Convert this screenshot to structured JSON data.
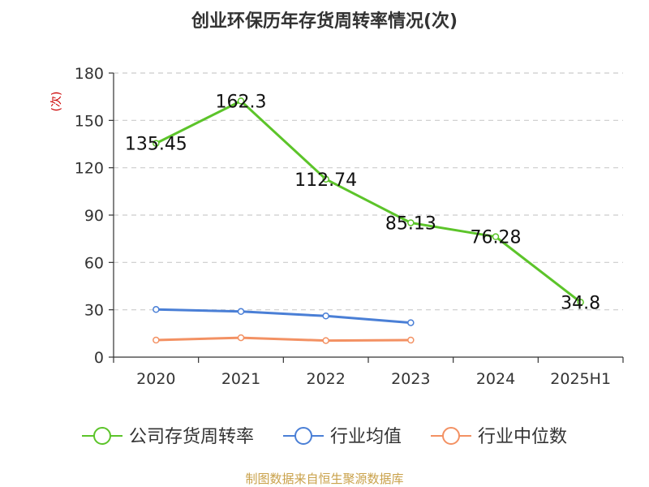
{
  "chart_data": {
    "type": "line",
    "title": "创业环保历年存货周转率情况(次)",
    "ylabel": "(次)",
    "categories": [
      "2020",
      "2021",
      "2022",
      "2023",
      "2024",
      "2025H1"
    ],
    "ylim": [
      0,
      180
    ],
    "yticks": [
      0,
      30,
      60,
      90,
      120,
      150,
      180
    ],
    "grid": true,
    "legend_position": "bottom",
    "series": [
      {
        "name": "公司存货周转率",
        "color": "#5cc42a",
        "values": [
          135.45,
          162.3,
          112.74,
          85.13,
          76.28,
          34.8
        ],
        "labels": [
          "135.45",
          "162.3",
          "112.74",
          "85.13",
          "76.28",
          "34.8"
        ],
        "show_labels": true
      },
      {
        "name": "行业均值",
        "color": "#4a7fd6",
        "values": [
          30.2,
          28.9,
          26.1,
          21.8,
          null,
          null
        ],
        "show_labels": false
      },
      {
        "name": "行业中位数",
        "color": "#f39163",
        "values": [
          10.8,
          12.3,
          10.5,
          10.8,
          null,
          null
        ],
        "show_labels": false
      }
    ],
    "source": "制图数据来自恒生聚源数据库"
  }
}
